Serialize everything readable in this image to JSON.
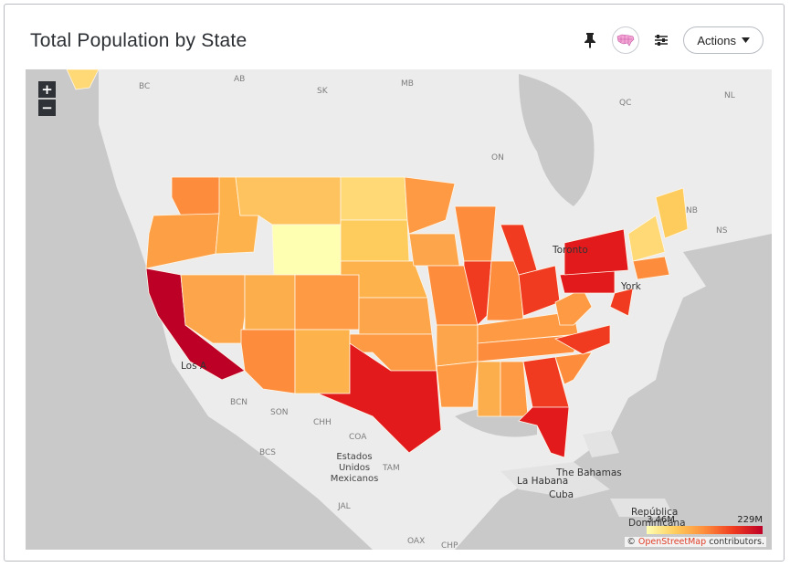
{
  "panel": {
    "title": "Total Population by State",
    "actions_label": "Actions"
  },
  "map": {
    "zoom_in": "+",
    "zoom_out": "−",
    "region_labels": {
      "bc": "BC",
      "ab": "AB",
      "sk": "SK",
      "mb": "MB",
      "on": "ON",
      "qc": "QC",
      "nl": "NL",
      "nb": "NB",
      "ns": "NS",
      "bcn": "BCN",
      "son": "SON",
      "chh": "CHH",
      "coa": "COA",
      "bcs": "BCS",
      "tam": "TAM",
      "jal": "JAL",
      "oax": "OAX",
      "chp": "CHP"
    },
    "cities": {
      "toronto": "Toronto",
      "los_angeles": "Los A",
      "new_york": "York",
      "la_habana": "La Habana",
      "bahamas": "The Bahamas",
      "cuba": "Cuba",
      "republica": "República",
      "dominicana": "Dominicana",
      "mexico_1": "Estados",
      "mexico_2": "Unidos",
      "mexico_3": "Mexicanos"
    },
    "legend": {
      "min": "3.46M",
      "max": "229M",
      "colors": [
        "#ffffb2",
        "#fecc5c",
        "#fd8d3c",
        "#f03b20",
        "#bd0026"
      ]
    },
    "attribution": {
      "prefix": "©",
      "link": "OpenStreetMap",
      "suffix": "contributors."
    }
  }
}
